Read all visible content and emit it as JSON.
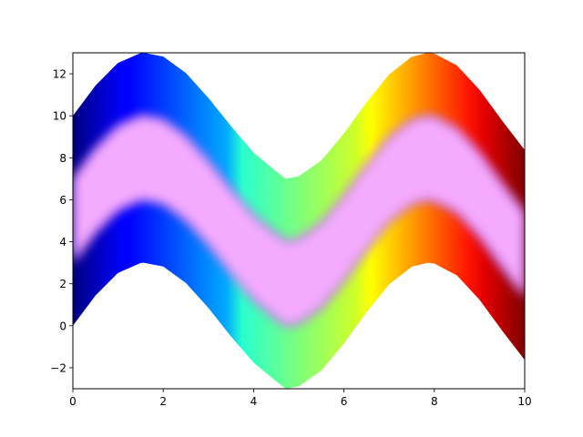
{
  "chart_data": {
    "type": "area",
    "title": "",
    "xlabel": "",
    "ylabel": "",
    "xlim": [
      0,
      10
    ],
    "ylim": [
      -3,
      13
    ],
    "grid": false,
    "x_ticks": [
      0,
      2,
      4,
      6,
      8,
      10
    ],
    "y_ticks": [
      -2,
      0,
      2,
      4,
      6,
      8,
      10,
      12
    ],
    "x_tick_labels": [
      "0",
      "2",
      "4",
      "6",
      "8",
      "10"
    ],
    "y_tick_labels": [
      "−2",
      "0",
      "2",
      "4",
      "6",
      "8",
      "10",
      "12"
    ],
    "x": [
      0,
      0.5,
      1,
      1.5,
      1.5708,
      2,
      2.5,
      3,
      3.5,
      4,
      4.5,
      4.7124,
      5,
      5.5,
      6,
      6.5,
      7,
      7.5,
      7.854,
      8,
      8.5,
      9,
      9.5,
      10
    ],
    "series": [
      {
        "role": "outer-band",
        "lower": [
          0,
          1.44,
          2.52,
          2.99,
          3.0,
          2.82,
          2.04,
          0.85,
          -0.51,
          -1.76,
          -2.65,
          -3.0,
          -2.88,
          -2.13,
          -0.84,
          0.64,
          1.97,
          2.81,
          3.0,
          2.96,
          2.4,
          1.24,
          -0.23,
          -1.63
        ],
        "upper": [
          10.0,
          11.44,
          12.52,
          12.99,
          13.0,
          12.82,
          12.04,
          10.85,
          9.51,
          8.24,
          7.35,
          7.0,
          7.12,
          7.87,
          9.16,
          10.64,
          11.97,
          12.81,
          13.0,
          12.96,
          12.4,
          11.24,
          9.77,
          8.37
        ],
        "color_scale": "jet-along-x"
      },
      {
        "role": "inner-band",
        "lower": [
          3.0,
          4.44,
          5.52,
          5.99,
          6.0,
          5.82,
          5.04,
          3.85,
          2.49,
          1.24,
          0.35,
          0.0,
          0.12,
          0.87,
          2.16,
          3.64,
          4.97,
          5.81,
          6.0,
          5.96,
          5.4,
          4.24,
          2.77,
          1.37
        ],
        "upper": [
          7.0,
          8.44,
          9.52,
          9.99,
          10.0,
          9.82,
          9.04,
          7.85,
          6.49,
          5.24,
          4.35,
          4.0,
          4.12,
          4.87,
          6.16,
          7.64,
          8.97,
          9.81,
          10.0,
          9.96,
          9.4,
          8.24,
          6.77,
          5.37
        ],
        "color": "#f4aaff"
      }
    ]
  }
}
